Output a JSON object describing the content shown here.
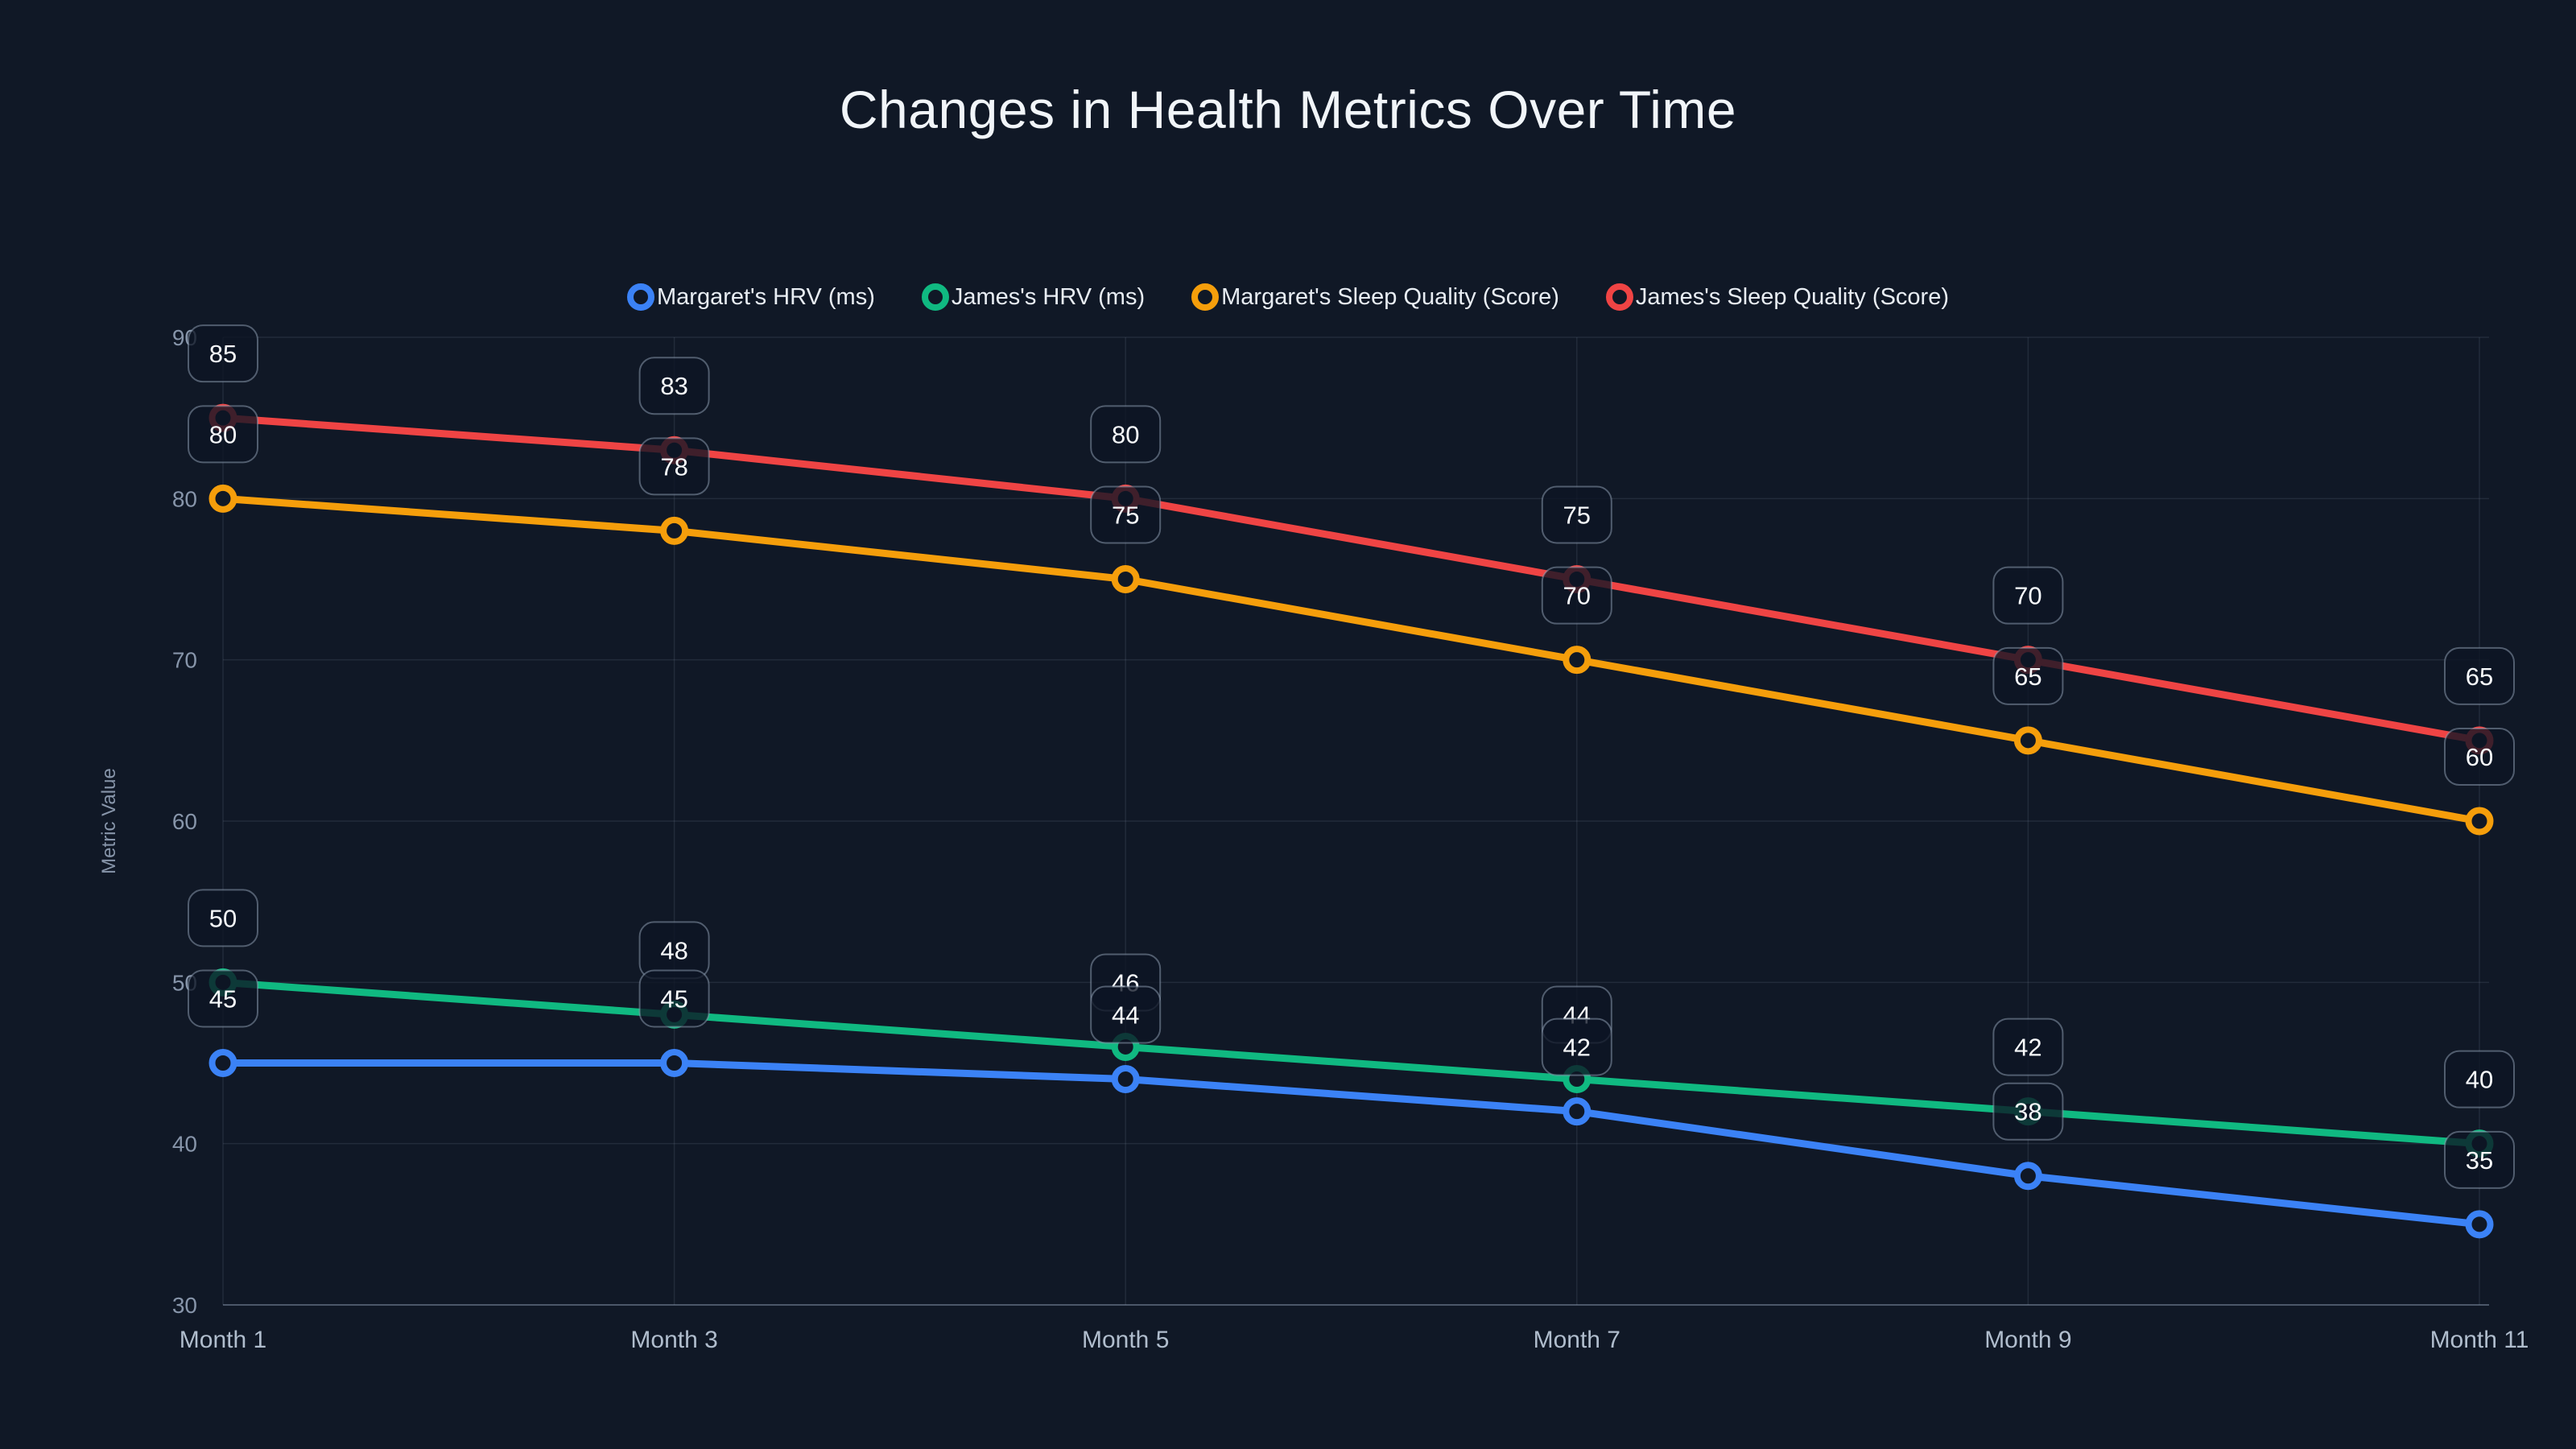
{
  "chart_data": {
    "type": "line",
    "title": "Changes in Health Metrics Over Time",
    "xlabel": "",
    "ylabel": "Metric Value",
    "categories": [
      "Month 1",
      "Month 3",
      "Month 5",
      "Month 7",
      "Month 9",
      "Month 11"
    ],
    "y_ticks": [
      30,
      40,
      50,
      60,
      70,
      80,
      90
    ],
    "ylim": [
      30,
      90
    ],
    "grid": true,
    "legend_position": "top",
    "point_labels_visible": true,
    "series": [
      {
        "name": "Margaret's HRV (ms)",
        "color": "#3b82f6",
        "values": [
          45,
          45,
          44,
          42,
          38,
          35
        ]
      },
      {
        "name": "James's HRV (ms)",
        "color": "#10b981",
        "values": [
          50,
          48,
          46,
          44,
          42,
          40
        ]
      },
      {
        "name": "Margaret's Sleep Quality (Score)",
        "color": "#f59e0b",
        "values": [
          80,
          78,
          75,
          70,
          65,
          60
        ]
      },
      {
        "name": "James's Sleep Quality (Score)",
        "color": "#ef4444",
        "values": [
          85,
          83,
          80,
          75,
          70,
          65
        ]
      }
    ],
    "colors": {
      "background": "#101826",
      "title_text": "#f1f5f9",
      "legend_text": "#e8edf3",
      "axis_tick_text": "#8795aa",
      "category_text": "#b0bdcd",
      "grid_line": "rgba(148,163,184,0.14)",
      "axis_line": "rgba(148,163,184,0.40)",
      "badge_fill": "rgba(13,20,36,0.78)",
      "badge_border": "rgba(148,163,184,0.50)",
      "badge_text": "#f8fafc"
    }
  }
}
